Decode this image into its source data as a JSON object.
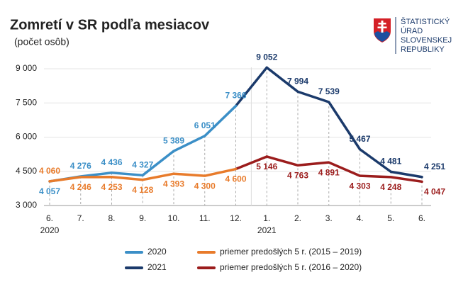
{
  "chart_data": {
    "type": "line",
    "title": "Zomretí v SR podľa mesiacov",
    "subtitle": "(počet osôb)",
    "logo_text": [
      "ŠTATISTICKÝ",
      "ÚRAD",
      "SLOVENSKEJ",
      "REPUBLIKY"
    ],
    "categories": [
      "6.",
      "7.",
      "8.",
      "9.",
      "10.",
      "11.",
      "12.",
      "1.",
      "2.",
      "3.",
      "4.",
      "5.",
      "6."
    ],
    "category_years": [
      "2020",
      null,
      null,
      null,
      null,
      null,
      null,
      "2021",
      null,
      null,
      null,
      null,
      null
    ],
    "ylim": [
      3000,
      9000
    ],
    "yticks": [
      {
        "value": 3000,
        "label": "3 000"
      },
      {
        "value": 4500,
        "label": "4 500"
      },
      {
        "value": 6000,
        "label": "6 000"
      },
      {
        "value": 7500,
        "label": "7 500"
      },
      {
        "value": 9000,
        "label": "9 000"
      }
    ],
    "grid": true,
    "series": [
      {
        "name": "2020",
        "color": "#3b8fc7",
        "values": [
          4057,
          4276,
          4436,
          4327,
          5389,
          6051,
          7366,
          null,
          null,
          null,
          null,
          null,
          null
        ],
        "value_labels": [
          "4 057",
          "4 276",
          "4 436",
          "4 327",
          "5 389",
          "6 051",
          "7 366",
          null,
          null,
          null,
          null,
          null,
          null
        ]
      },
      {
        "name": "2021",
        "color": "#1b3a6b",
        "values": [
          null,
          null,
          null,
          null,
          null,
          null,
          null,
          9052,
          7994,
          7539,
          5467,
          4481,
          4251
        ],
        "value_labels": [
          null,
          null,
          null,
          null,
          null,
          null,
          null,
          "9 052",
          "7 994",
          "7 539",
          "5 467",
          "4 481",
          "4 251"
        ]
      },
      {
        "name": "priemer predošlých 5 r. (2015 – 2019)",
        "color": "#e87b2b",
        "values": [
          4060,
          4246,
          4253,
          4128,
          4393,
          4300,
          4600,
          null,
          null,
          null,
          null,
          null,
          null
        ],
        "value_labels": [
          "4 060",
          "4 246",
          "4 253",
          "4 128",
          "4 393",
          "4 300",
          "4 600",
          null,
          null,
          null,
          null,
          null,
          null
        ]
      },
      {
        "name": "priemer predošlých 5 r. (2016 – 2020)",
        "color": "#9b1c1c",
        "values": [
          null,
          null,
          null,
          null,
          null,
          null,
          null,
          5146,
          4763,
          4891,
          4303,
          4248,
          4047
        ],
        "value_labels": [
          null,
          null,
          null,
          null,
          null,
          null,
          null,
          "5 146",
          "4 763",
          "4 891",
          "4 303",
          "4 248",
          "4 047"
        ]
      }
    ]
  }
}
